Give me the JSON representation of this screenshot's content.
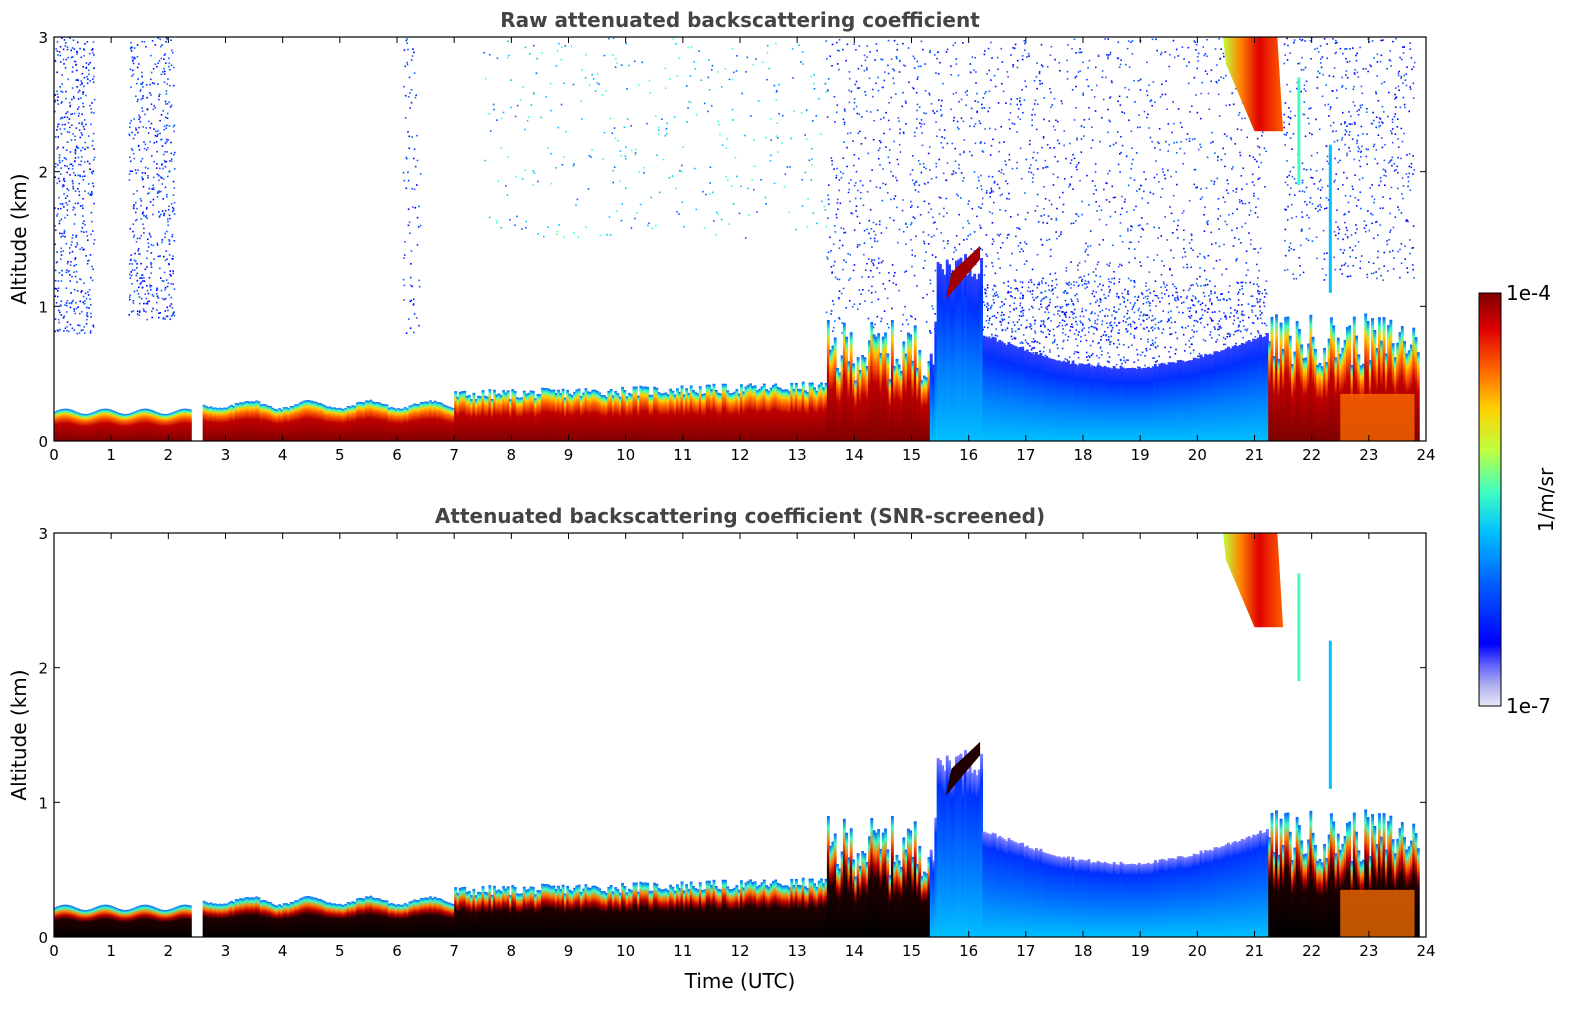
{
  "chart_data": [
    {
      "type": "heatmap",
      "title": "Raw attenuated backscattering coefficient",
      "xlabel": "",
      "ylabel": "Altitude (km)",
      "xlim": [
        0,
        24
      ],
      "ylim": [
        0,
        3
      ],
      "xticks": [
        "0",
        "1",
        "2",
        "3",
        "4",
        "5",
        "6",
        "7",
        "8",
        "9",
        "10",
        "11",
        "12",
        "13",
        "14",
        "15",
        "16",
        "17",
        "18",
        "19",
        "20",
        "21",
        "22",
        "23",
        "24"
      ],
      "yticks": [
        "0",
        "1",
        "2",
        "3"
      ],
      "features": [
        {
          "t": [
            0.0,
            2.4
          ],
          "layer_top_km": 0.22,
          "desc": "strong near-surface layer"
        },
        {
          "t": [
            2.6,
            13.5
          ],
          "layer_top_km": 0.35,
          "desc": "strong aerosol layer"
        },
        {
          "t": [
            13.5,
            16.2
          ],
          "layer_top_km": 1.4,
          "desc": "convective plumes / elevated layer"
        },
        {
          "t": [
            16.2,
            21.3
          ],
          "layer_top_km": 0.8,
          "desc": "moderate mixed layer"
        },
        {
          "t": [
            20.5,
            21.5
          ],
          "cloud_km": [
            2.3,
            3.0
          ],
          "desc": "high cloud"
        },
        {
          "t": [
            21.3,
            23.8
          ],
          "layer_top_km": 0.9,
          "desc": "strong layer"
        }
      ]
    },
    {
      "type": "heatmap",
      "title": "Attenuated backscattering coefficient (SNR-screened)",
      "xlabel": "Time (UTC)",
      "ylabel": "Altitude (km)",
      "xlim": [
        0,
        24
      ],
      "ylim": [
        0,
        3
      ],
      "xticks": [
        "0",
        "1",
        "2",
        "3",
        "4",
        "5",
        "6",
        "7",
        "8",
        "9",
        "10",
        "11",
        "12",
        "13",
        "14",
        "15",
        "16",
        "17",
        "18",
        "19",
        "20",
        "21",
        "22",
        "23",
        "24"
      ],
      "yticks": [
        "0",
        "1",
        "2",
        "3"
      ]
    }
  ],
  "colorbar": {
    "label": "1/m/sr",
    "min_label": "1e-7",
    "max_label": "1e-4",
    "colormap": "jet"
  },
  "colors": {
    "title": "#444444",
    "dark_red": "#7f0000",
    "blue": "#0000ff"
  }
}
